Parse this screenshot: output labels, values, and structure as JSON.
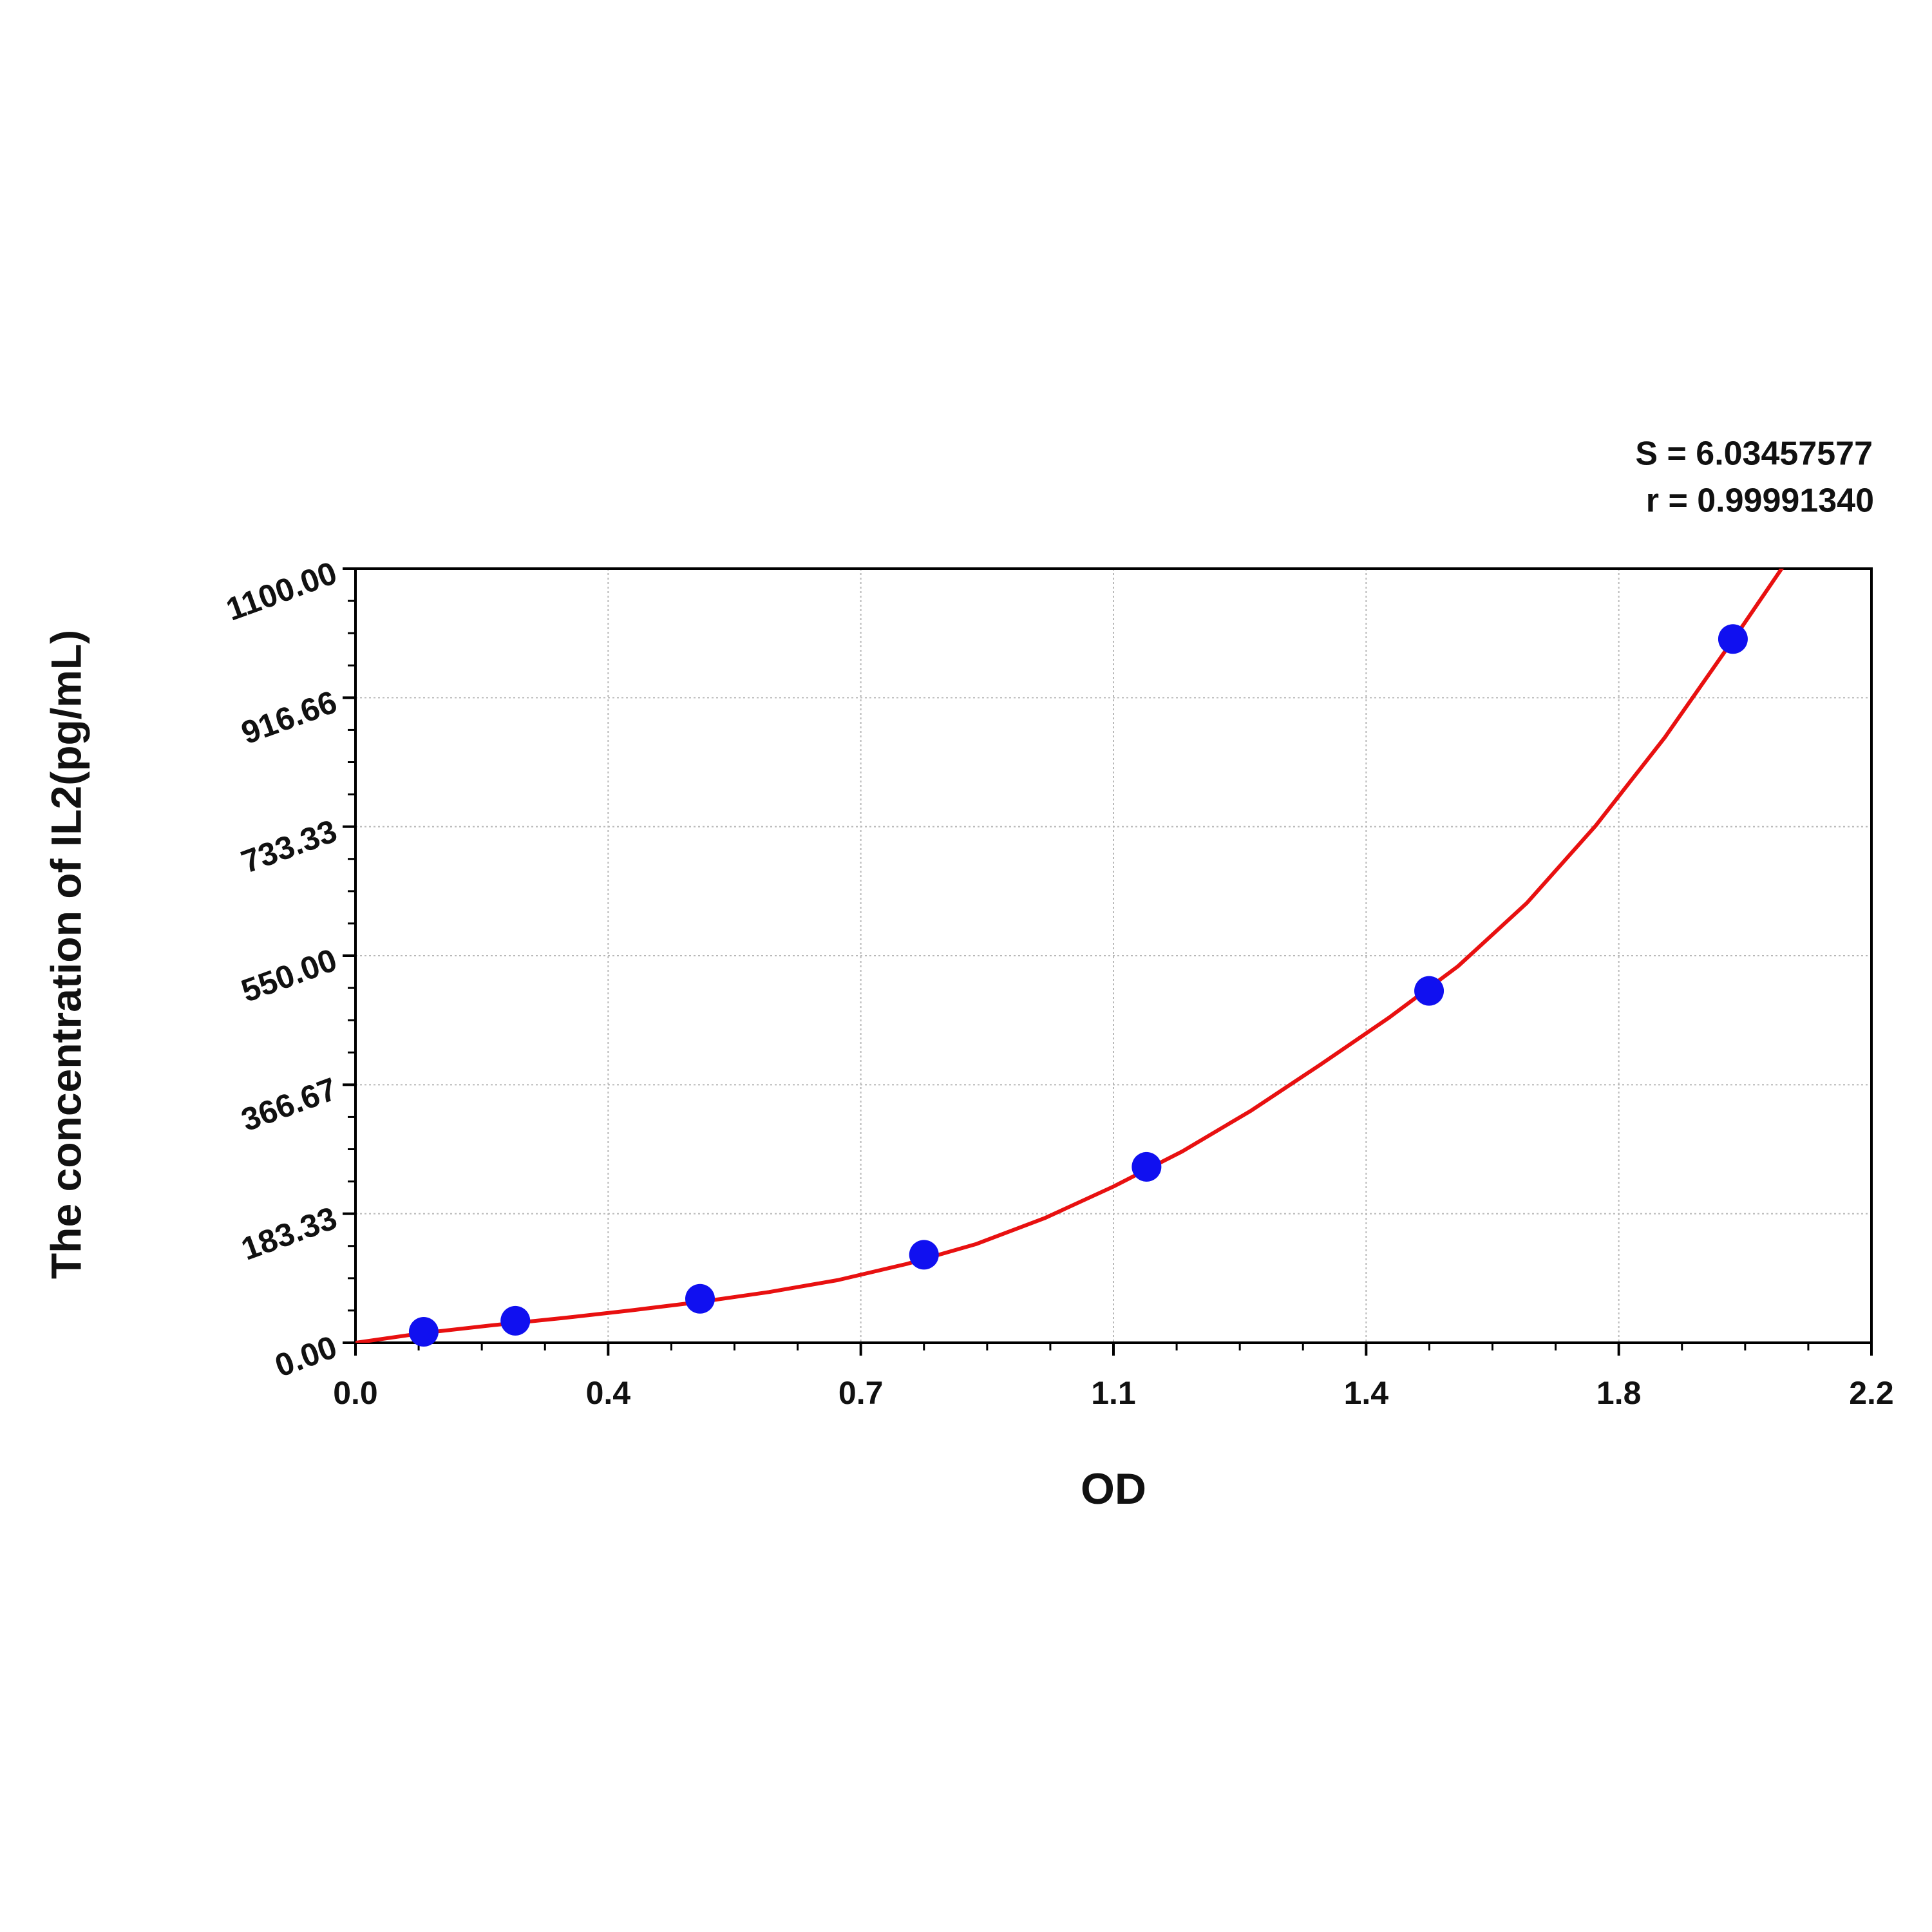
{
  "chart_data": {
    "type": "scatter",
    "x_label": "OD",
    "y_label": "The concentration of IL2(pg/mL)",
    "annotations": [
      "S = 6.03457577",
      "r = 0.99991340"
    ],
    "xlim": [
      0,
      2.2
    ],
    "ylim": [
      0,
      1100
    ],
    "xticks": [
      {
        "value": 0,
        "label": "0.0"
      },
      {
        "value": 0.36667,
        "label": "0.4"
      },
      {
        "value": 0.73333,
        "label": "0.7"
      },
      {
        "value": 1.1,
        "label": "1.1"
      },
      {
        "value": 1.46667,
        "label": "1.4"
      },
      {
        "value": 1.83333,
        "label": "1.8"
      },
      {
        "value": 2.2,
        "label": "2.2"
      }
    ],
    "yticks": [
      {
        "value": 0,
        "label": "0.00"
      },
      {
        "value": 183.33,
        "label": "183.33"
      },
      {
        "value": 366.67,
        "label": "366.67"
      },
      {
        "value": 550,
        "label": "550.00"
      },
      {
        "value": 733.33,
        "label": "733.33"
      },
      {
        "value": 916.66,
        "label": "916.66"
      },
      {
        "value": 1100,
        "label": "1100.00"
      }
    ],
    "grid": true,
    "series": [
      {
        "type": "scatter",
        "color": "#1010f0",
        "x": [
          0.099,
          0.232,
          0.5,
          0.825,
          1.148,
          1.558,
          1.999
        ],
        "values": [
          15.6,
          31.25,
          62.5,
          125,
          250,
          500,
          1000
        ]
      },
      {
        "type": "line",
        "color": "#e81010",
        "x": [
          0,
          0.1,
          0.2,
          0.3,
          0.4,
          0.5,
          0.6,
          0.7,
          0.8,
          0.9,
          1.0,
          1.1,
          1.2,
          1.3,
          1.4,
          1.5,
          1.6,
          1.7,
          1.8,
          1.9,
          2.0,
          2.078
        ],
        "values": [
          0,
          14,
          25,
          35,
          46,
          58,
          72,
          89,
          112,
          140,
          177,
          222,
          272,
          330,
          395,
          462,
          535,
          625,
          735,
          860,
          1000,
          1112
        ]
      }
    ]
  }
}
